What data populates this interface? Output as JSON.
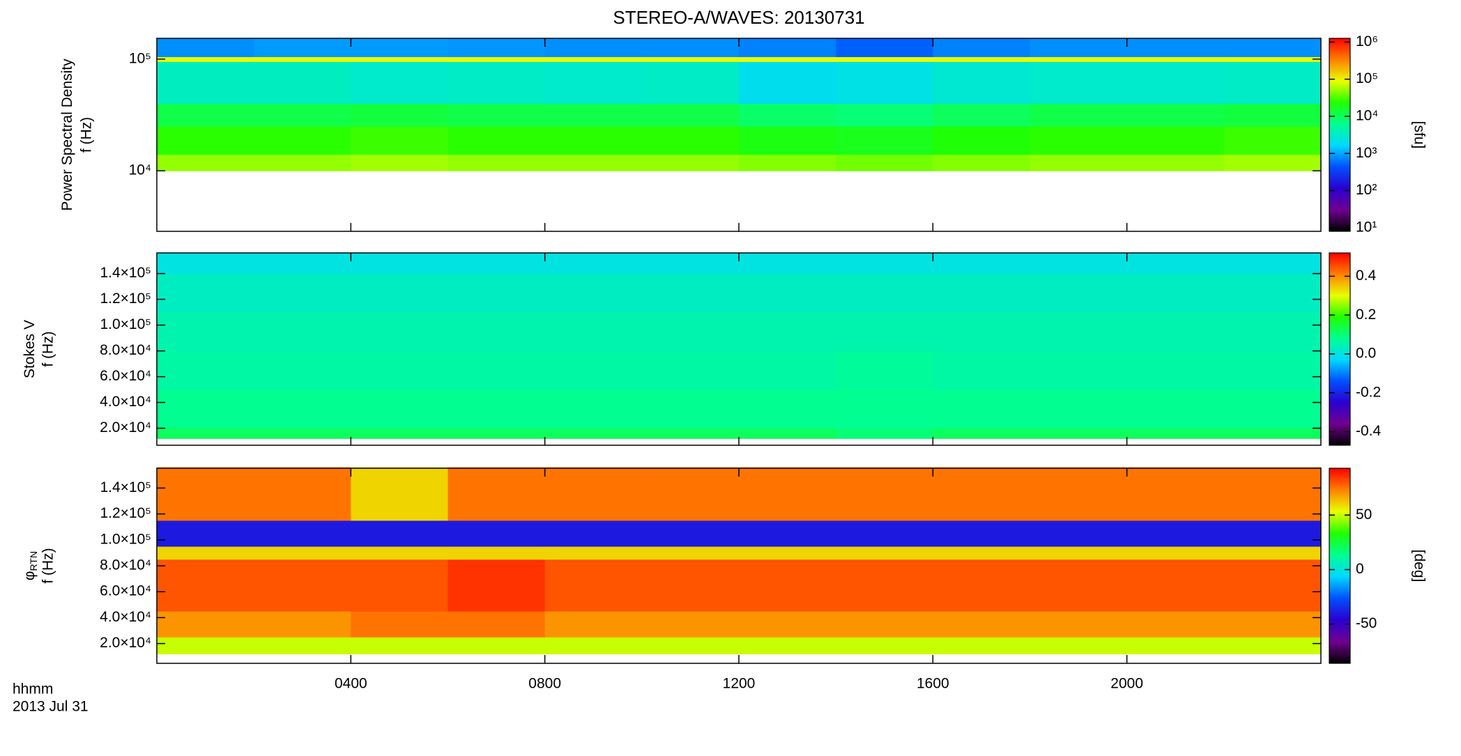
{
  "title": "STEREO-A/WAVES: 20130731",
  "colormap": [
    "#000000",
    "#700090",
    "#2a00d0",
    "#0050ff",
    "#00d8ff",
    "#00ff90",
    "#20ff00",
    "#e8ff00",
    "#ff8000",
    "#ff0000"
  ],
  "chart_data": [
    {
      "type": "heatmap",
      "ylabel": [
        "Power Spectral Density",
        "f (Hz)"
      ],
      "ylog": true,
      "ylim": [
        2870,
        153500
      ],
      "yticks": [
        {
          "value": 10000,
          "label": "10⁴"
        },
        {
          "value": 100000,
          "label": "10⁵"
        }
      ],
      "xlim": [
        0,
        24
      ],
      "x_edges": [
        0,
        2,
        4,
        6,
        8,
        10,
        12,
        14,
        16,
        18,
        20,
        22,
        24
      ],
      "y_edges": [
        10000,
        14000,
        25000,
        40000,
        95000,
        105000,
        153500
      ],
      "z": [
        [
          50000,
          50000,
          55000,
          50000,
          50000,
          50000,
          45000,
          40000,
          45000,
          50000,
          50000,
          55000
        ],
        [
          25000,
          25000,
          28000,
          25000,
          25000,
          25000,
          20000,
          18000,
          22000,
          25000,
          25000,
          28000
        ],
        [
          12000,
          12000,
          13000,
          12000,
          12000,
          12000,
          9000,
          8000,
          10000,
          12000,
          12000,
          13000
        ],
        [
          3500,
          3500,
          3000,
          3200,
          3000,
          3200,
          2000,
          2200,
          2800,
          3000,
          3000,
          3200
        ],
        [
          90000,
          90000,
          90000,
          90000,
          90000,
          90000,
          90000,
          90000,
          90000,
          90000,
          90000,
          90000
        ],
        [
          800,
          900,
          900,
          850,
          800,
          800,
          700,
          500,
          700,
          800,
          800,
          800
        ]
      ],
      "colorbar": {
        "label": "[sfu]",
        "log": true,
        "clim": [
          8,
          1260000
        ],
        "ticks": [
          {
            "value": 10,
            "label": "10¹"
          },
          {
            "value": 100,
            "label": "10²"
          },
          {
            "value": 1000,
            "label": "10³"
          },
          {
            "value": 10000,
            "label": "10⁴"
          },
          {
            "value": 100000,
            "label": "10⁵"
          },
          {
            "value": 1000000,
            "label": "10⁶"
          }
        ]
      }
    },
    {
      "type": "heatmap",
      "ylabel": [
        "Stokes V",
        "f (Hz)"
      ],
      "ylog": false,
      "ylim": [
        6800,
        156000
      ],
      "yticks": [
        {
          "value": 20000,
          "label": "2.0×10⁴"
        },
        {
          "value": 40000,
          "label": "4.0×10⁴"
        },
        {
          "value": 60000,
          "label": "6.0×10⁴"
        },
        {
          "value": 80000,
          "label": "8.0×10⁴"
        },
        {
          "value": 100000,
          "label": "1.0×10⁵"
        },
        {
          "value": 120000,
          "label": "1.2×10⁵"
        },
        {
          "value": 140000,
          "label": "1.4×10⁵"
        }
      ],
      "xlim": [
        0,
        24
      ],
      "x_edges": [
        0,
        2,
        4,
        6,
        8,
        10,
        12,
        14,
        16,
        18,
        20,
        22,
        24
      ],
      "y_edges": [
        12000,
        20000,
        50000,
        80000,
        110000,
        140000,
        156000
      ],
      "z": [
        [
          0.12,
          0.12,
          0.12,
          0.12,
          0.12,
          0.12,
          0.12,
          0.1,
          0.12,
          0.12,
          0.12,
          0.12
        ],
        [
          0.08,
          0.08,
          0.08,
          0.08,
          0.08,
          0.08,
          0.08,
          0.08,
          0.08,
          0.08,
          0.08,
          0.08
        ],
        [
          0.06,
          0.06,
          0.06,
          0.06,
          0.06,
          0.06,
          0.06,
          0.07,
          0.06,
          0.06,
          0.06,
          0.06
        ],
        [
          0.05,
          0.05,
          0.05,
          0.05,
          0.05,
          0.05,
          0.05,
          0.05,
          0.05,
          0.05,
          0.05,
          0.05
        ],
        [
          0.03,
          0.03,
          0.03,
          0.03,
          0.03,
          0.03,
          0.03,
          0.03,
          0.03,
          0.03,
          0.03,
          0.03
        ],
        [
          0.0,
          0.0,
          0.0,
          0.0,
          0.0,
          0.0,
          0.0,
          0.0,
          0.0,
          0.0,
          0.0,
          0.0
        ]
      ],
      "colorbar": {
        "log": false,
        "clim": [
          -0.47,
          0.52
        ],
        "ticks": [
          {
            "value": -0.4,
            "label": "-0.4"
          },
          -0.2,
          {
            "value": 0,
            "label": "0.0"
          },
          0.2,
          0.4
        ]
      }
    },
    {
      "type": "heatmap",
      "ylabel": [
        "φ",
        "f (Hz)"
      ],
      "ylabel_sub": "RTN",
      "ylog": false,
      "ylim": [
        4730,
        155270
      ],
      "yticks": [
        {
          "value": 20000,
          "label": "2.0×10⁴"
        },
        {
          "value": 40000,
          "label": "4.0×10⁴"
        },
        {
          "value": 60000,
          "label": "6.0×10⁴"
        },
        {
          "value": 80000,
          "label": "8.0×10⁴"
        },
        {
          "value": 100000,
          "label": "1.0×10⁵"
        },
        {
          "value": 120000,
          "label": "1.2×10⁵"
        },
        {
          "value": 140000,
          "label": "1.4×10⁵"
        }
      ],
      "xlim": [
        0,
        24
      ],
      "xticks": [
        {
          "value": 4,
          "label": "0400"
        },
        {
          "value": 8,
          "label": "0800"
        },
        {
          "value": 12,
          "label": "1200"
        },
        {
          "value": 16,
          "label": "1600"
        },
        {
          "value": 20,
          "label": "2000"
        }
      ],
      "xlabel": "hhmm",
      "date": "2013 Jul 31",
      "x_edges": [
        0,
        2,
        4,
        6,
        8,
        10,
        12,
        14,
        16,
        18,
        20,
        22,
        24
      ],
      "y_edges": [
        12000,
        25000,
        45000,
        85000,
        95000,
        115000,
        156000
      ],
      "z": [
        [
          50,
          50,
          50,
          50,
          50,
          50,
          50,
          50,
          50,
          50,
          50,
          50
        ],
        [
          70,
          70,
          75,
          75,
          70,
          70,
          70,
          70,
          70,
          70,
          70,
          70
        ],
        [
          80,
          80,
          80,
          85,
          80,
          80,
          80,
          80,
          80,
          80,
          80,
          80
        ],
        [
          60,
          60,
          60,
          60,
          60,
          60,
          60,
          60,
          60,
          60,
          60,
          60
        ],
        [
          -40,
          -40,
          -40,
          -40,
          -40,
          -40,
          -40,
          -40,
          -40,
          -40,
          -40,
          -40
        ],
        [
          75,
          75,
          60,
          75,
          75,
          75,
          75,
          75,
          75,
          75,
          75,
          75
        ]
      ],
      "colorbar": {
        "label": "[deg]",
        "log": false,
        "clim": [
          -86,
          93
        ],
        "ticks": [
          -50,
          0,
          50
        ]
      }
    }
  ]
}
